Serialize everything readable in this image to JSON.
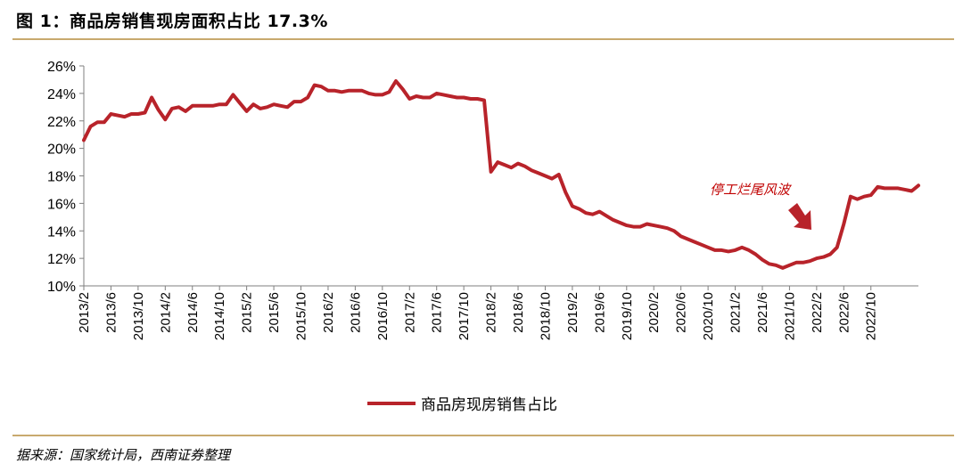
{
  "figure": {
    "title": "图 1：商品房销售现房面积占比 17.3%",
    "source": "据来源：国家统计局，西南证券整理"
  },
  "colors": {
    "series": "#b8232a",
    "rule": "#c8a96e",
    "axis": "#7f7f7f",
    "annotation_text": "#c00000"
  },
  "chart_data": {
    "type": "line",
    "title": "",
    "xlabel": "",
    "ylabel": "",
    "ylim": [
      10,
      26
    ],
    "y_ticks": [
      "10%",
      "12%",
      "14%",
      "16%",
      "18%",
      "20%",
      "22%",
      "24%",
      "26%"
    ],
    "x_tick_labels": [
      "2013/2",
      "2013/6",
      "2013/10",
      "2014/2",
      "2014/6",
      "2014/10",
      "2015/2",
      "2015/6",
      "2015/10",
      "2016/2",
      "2016/6",
      "2016/10",
      "2017/2",
      "2017/6",
      "2017/10",
      "2018/2",
      "2018/6",
      "2018/10",
      "2019/2",
      "2019/6",
      "2019/10",
      "2020/2",
      "2020/6",
      "2020/10",
      "2021/2",
      "2021/6",
      "2021/10",
      "2022/2",
      "2022/6",
      "2022/10"
    ],
    "x_start": "2013/2",
    "legend_position": "bottom",
    "grid": false,
    "series": [
      {
        "name": "商品房现房销售占比",
        "values": [
          20.6,
          21.6,
          21.9,
          21.9,
          22.5,
          22.4,
          22.3,
          22.5,
          22.5,
          22.6,
          23.7,
          22.8,
          22.1,
          22.9,
          23.0,
          22.7,
          23.1,
          23.1,
          23.1,
          23.1,
          23.2,
          23.2,
          23.9,
          23.3,
          22.7,
          23.2,
          22.9,
          23.0,
          23.2,
          23.1,
          23.0,
          23.4,
          23.4,
          23.7,
          24.6,
          24.5,
          24.2,
          24.2,
          24.1,
          24.2,
          24.2,
          24.2,
          24.0,
          23.9,
          23.9,
          24.1,
          24.9,
          24.3,
          23.6,
          23.8,
          23.7,
          23.7,
          24.0,
          23.9,
          23.8,
          23.7,
          23.7,
          23.6,
          23.6,
          23.5,
          18.3,
          19.0,
          18.8,
          18.6,
          18.9,
          18.7,
          18.4,
          18.2,
          18.0,
          17.8,
          18.1,
          16.8,
          15.8,
          15.6,
          15.3,
          15.2,
          15.4,
          15.1,
          14.8,
          14.6,
          14.4,
          14.3,
          14.3,
          14.5,
          14.4,
          14.3,
          14.2,
          14.0,
          13.6,
          13.4,
          13.2,
          13.0,
          12.8,
          12.6,
          12.6,
          12.5,
          12.6,
          12.8,
          12.6,
          12.3,
          11.9,
          11.6,
          11.5,
          11.3,
          11.5,
          11.7,
          11.7,
          11.8,
          12.0,
          12.1,
          12.3,
          12.8,
          14.5,
          16.5,
          16.3,
          16.5,
          16.6,
          17.2,
          17.1,
          17.1,
          17.1,
          17.0,
          16.9,
          17.3
        ]
      }
    ],
    "annotation": {
      "text": "停工烂尾风波",
      "arrow_icon": "down-right-arrow-icon"
    }
  }
}
